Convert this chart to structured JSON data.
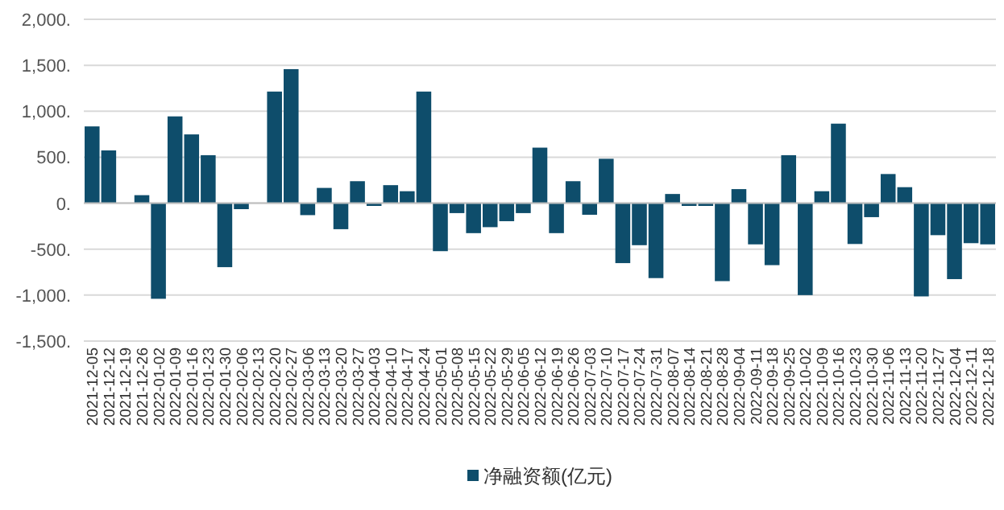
{
  "chart_data": {
    "type": "bar",
    "categories": [
      "2021-12-05",
      "2021-12-12",
      "2021-12-19",
      "2021-12-26",
      "2022-01-02",
      "2022-01-09",
      "2022-01-16",
      "2022-01-23",
      "2022-01-30",
      "2022-02-06",
      "2022-02-13",
      "2022-02-20",
      "2022-02-27",
      "2022-03-06",
      "2022-03-13",
      "2022-03-20",
      "2022-03-27",
      "2022-04-03",
      "2022-04-10",
      "2022-04-17",
      "2022-04-24",
      "2022-05-01",
      "2022-05-08",
      "2022-05-15",
      "2022-05-22",
      "2022-05-29",
      "2022-06-05",
      "2022-06-12",
      "2022-06-19",
      "2022-06-26",
      "2022-07-03",
      "2022-07-10",
      "2022-07-17",
      "2022-07-24",
      "2022-07-31",
      "2022-08-07",
      "2022-08-14",
      "2022-08-21",
      "2022-08-28",
      "2022-09-04",
      "2022-09-11",
      "2022-09-18",
      "2022-09-25",
      "2022-10-02",
      "2022-10-09",
      "2022-10-16",
      "2022-10-23",
      "2022-10-30",
      "2022-11-06",
      "2022-11-13",
      "2022-11-20",
      "2022-11-27",
      "2022-12-04",
      "2022-12-11",
      "2022-12-18"
    ],
    "series": [
      {
        "name": "净融资额(亿元)",
        "color": "#0e4d6b",
        "values": [
          835,
          574,
          0,
          87,
          -1040,
          944,
          748,
          522,
          -696,
          -65,
          0,
          1214,
          1458,
          -130,
          166,
          -283,
          239,
          -30,
          196,
          130,
          1214,
          -522,
          -108,
          -326,
          -261,
          -196,
          -108,
          604,
          -326,
          239,
          -126,
          483,
          -652,
          -457,
          -815,
          100,
          -30,
          -30,
          -848,
          153,
          -448,
          -674,
          522,
          -1000,
          130,
          865,
          -444,
          -152,
          317,
          174,
          -1014,
          -348,
          -826,
          -435,
          -448
        ]
      }
    ],
    "ylim": [
      -1500,
      2000
    ],
    "yticks": [
      {
        "value": -1500,
        "label": "-1,500."
      },
      {
        "value": -1000,
        "label": "-1,000."
      },
      {
        "value": -500,
        "label": "-500."
      },
      {
        "value": 0,
        "label": "0."
      },
      {
        "value": 500,
        "label": "500."
      },
      {
        "value": 1000,
        "label": "1,000."
      },
      {
        "value": 1500,
        "label": "1,500."
      },
      {
        "value": 2000,
        "label": "2,000."
      }
    ],
    "grid": "y",
    "legend": "bottom"
  }
}
